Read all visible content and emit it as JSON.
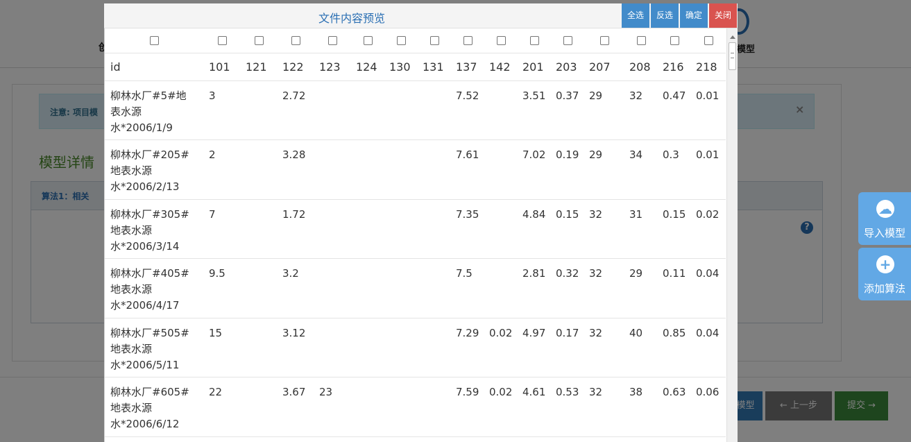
{
  "background": {
    "step_left_label": "创",
    "step_right_label": "模型",
    "alert_text": "注意: 项目模",
    "alert_close": "×",
    "section_title": "模型详情",
    "algo_header": "算法1：相关",
    "help_icon": "question-circle-icon",
    "footer_buttons": {
      "model": "模型",
      "prev": "← 上一步",
      "submit": "提交 →"
    }
  },
  "floating": {
    "import": {
      "label": "导入模型",
      "icon": "cloud-download-icon"
    },
    "add": {
      "label": "添加算法",
      "icon": "plus-circle-icon"
    }
  },
  "modal": {
    "title": "文件内容预览",
    "buttons": {
      "select_all": "全选",
      "invert": "反选",
      "confirm": "确定",
      "close": "关闭"
    },
    "columns": [
      "id",
      "101",
      "121",
      "122",
      "123",
      "124",
      "130",
      "131",
      "137",
      "142",
      "201",
      "203",
      "207",
      "208",
      "216",
      "218"
    ],
    "rows": [
      {
        "id": [
          "柳林水厂#5#地",
          "表水源",
          "水*2006/1/9"
        ],
        "cells": [
          "3",
          "",
          "2.72",
          "",
          "",
          "",
          "",
          "7.52",
          "",
          "3.51",
          "0.37",
          "29",
          "32",
          "0.47",
          "0.01"
        ]
      },
      {
        "id": [
          "柳林水厂#205#",
          "地表水源",
          "水*2006/2/13"
        ],
        "cells": [
          "2",
          "",
          "3.28",
          "",
          "",
          "",
          "",
          "7.61",
          "",
          "7.02",
          "0.19",
          "29",
          "34",
          "0.3",
          "0.01"
        ]
      },
      {
        "id": [
          "柳林水厂#305#",
          "地表水源",
          "水*2006/3/14"
        ],
        "cells": [
          "7",
          "",
          "1.72",
          "",
          "",
          "",
          "",
          "7.35",
          "",
          "4.84",
          "0.15",
          "32",
          "31",
          "0.15",
          "0.02"
        ]
      },
      {
        "id": [
          "柳林水厂#405#",
          "地表水源",
          "水*2006/4/17"
        ],
        "cells": [
          "9.5",
          "",
          "3.2",
          "",
          "",
          "",
          "",
          "7.5",
          "",
          "2.81",
          "0.32",
          "32",
          "29",
          "0.11",
          "0.04"
        ]
      },
      {
        "id": [
          "柳林水厂#505#",
          "地表水源",
          "水*2006/5/11"
        ],
        "cells": [
          "15",
          "",
          "3.12",
          "",
          "",
          "",
          "",
          "7.29",
          "0.02",
          "4.97",
          "0.17",
          "32",
          "40",
          "0.85",
          "0.04"
        ]
      },
      {
        "id": [
          "柳林水厂#605#",
          "地表水源",
          "水*2006/6/12"
        ],
        "cells": [
          "22",
          "",
          "3.67",
          "23",
          "",
          "",
          "",
          "7.59",
          "0.02",
          "4.61",
          "0.53",
          "32",
          "38",
          "0.63",
          "0.06"
        ]
      }
    ]
  }
}
